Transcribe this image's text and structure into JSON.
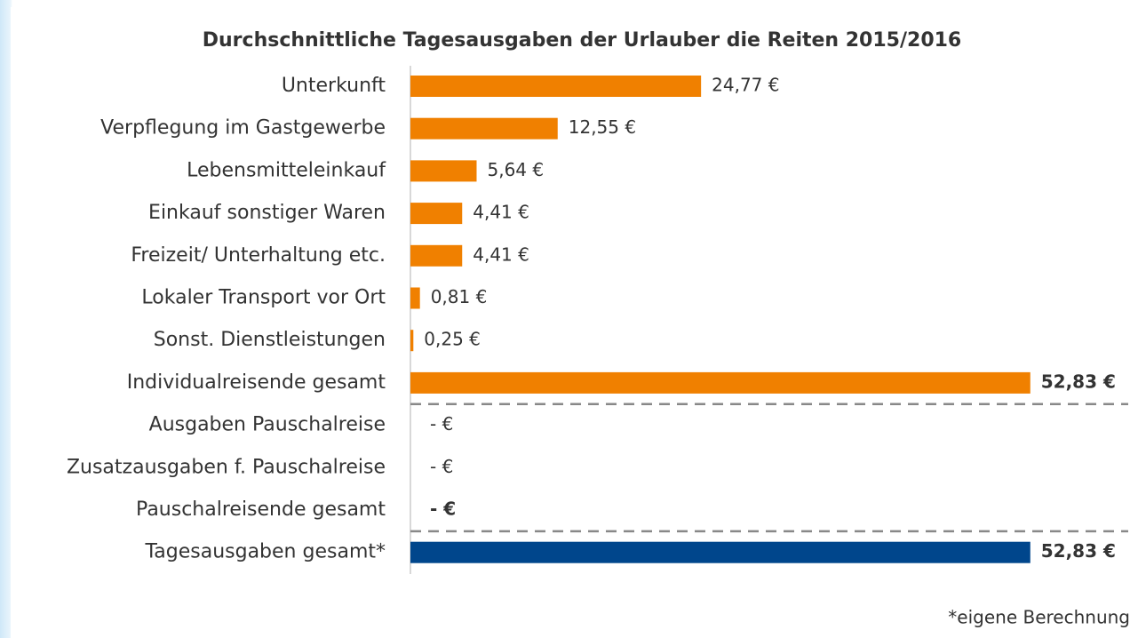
{
  "chart_data": {
    "type": "barh",
    "title": "Durchschnittliche Tagesausgaben der Urlauber die Reiten 2015/2016",
    "categories": [
      "Unterkunft",
      "Verpflegung im Gastgewerbe",
      "Lebensmitteleinkauf",
      "Einkauf sonstiger Waren",
      "Freizeit/ Unterhaltung etc.",
      "Lokaler Transport vor Ort",
      "Sonst. Dienstleistungen",
      "Individualreisende gesamt",
      "Ausgaben Pauschalreise",
      "Zusatzausgaben f. Pauschalreise",
      "Pauschalreisende gesamt",
      "Tagesausgaben gesamt*"
    ],
    "values": [
      24.77,
      12.55,
      5.64,
      4.41,
      4.41,
      0.81,
      0.25,
      52.83,
      0,
      0,
      0,
      52.83
    ],
    "value_labels": [
      "24,77 €",
      "12,55 €",
      "5,64 €",
      "4,41 €",
      "4,41 €",
      "0,81 €",
      "0,25 €",
      "52,83 €",
      "-  €",
      "-  €",
      "-  €",
      "52,83 €"
    ],
    "colors": [
      "#f08000",
      "#f08000",
      "#f08000",
      "#f08000",
      "#f08000",
      "#f08000",
      "#f08000",
      "#f08000",
      "#f08000",
      "#f08000",
      "#f08000",
      "#00468c"
    ],
    "emphasis": [
      7,
      10,
      11
    ],
    "separators_after": [
      7,
      10
    ],
    "xlim": [
      0,
      53
    ],
    "footnote": "*eigene Berechnung"
  }
}
